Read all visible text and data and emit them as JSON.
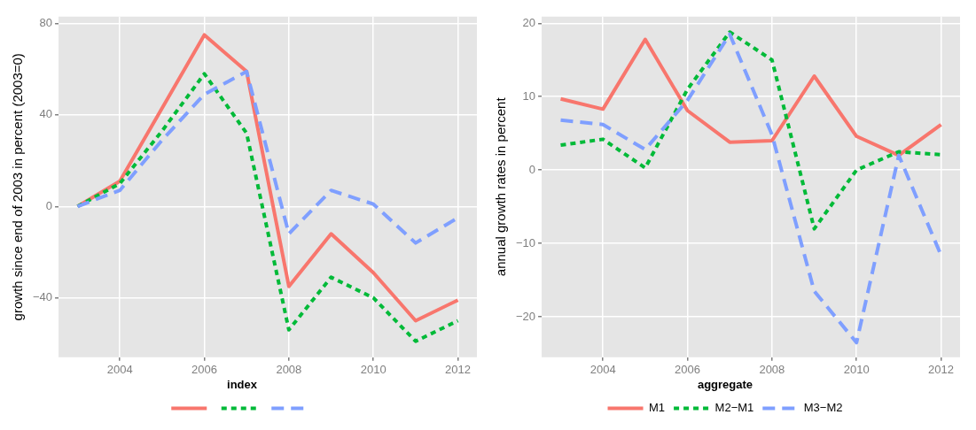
{
  "chart_data": [
    {
      "type": "line",
      "ylabel": "growth since end of 2003 in percent (2003=0)",
      "legend_title": "index",
      "legend": "bottom",
      "grid": true,
      "x": [
        2003,
        2004,
        2005,
        2006,
        2007,
        2008,
        2009,
        2010,
        2011,
        2012
      ],
      "xlim": [
        2002.55,
        2012.45
      ],
      "xticks": [
        2004,
        2006,
        2008,
        2010,
        2012
      ],
      "ylim": [
        -66,
        83
      ],
      "yticks": [
        -40,
        0,
        40,
        80
      ],
      "series": [
        {
          "color": "#f8766d",
          "line_style": "solid",
          "values": [
            0,
            11,
            43,
            75,
            59,
            -35,
            -12,
            -29,
            -50,
            -41
          ]
        },
        {
          "color": "#00ba38",
          "line_style": "dotted",
          "values": [
            0,
            10,
            33,
            58,
            32,
            -54,
            -31,
            -40,
            -59,
            -50
          ]
        },
        {
          "color": "#7f9fff",
          "line_style": "dashed",
          "values": [
            0,
            7,
            29,
            49,
            59,
            -12,
            7,
            1,
            -16,
            -5
          ]
        }
      ]
    },
    {
      "type": "line",
      "ylabel": "annual growth rates in percent",
      "legend_title": "aggregate",
      "legend": "bottom",
      "grid": true,
      "x": [
        2003,
        2004,
        2005,
        2006,
        2007,
        2008,
        2009,
        2010,
        2011,
        2012
      ],
      "xlim": [
        2002.55,
        2012.45
      ],
      "xticks": [
        2004,
        2006,
        2008,
        2010,
        2012
      ],
      "ylim": [
        -25.5,
        20.9
      ],
      "yticks": [
        {
          "value": -20,
          "label": "−20"
        },
        {
          "value": -10,
          "label": "−10"
        },
        0,
        10,
        20
      ],
      "series": [
        {
          "name": "M1",
          "color": "#f8766d",
          "line_style": "solid",
          "values": [
            9.7,
            8.3,
            17.8,
            8.1,
            3.8,
            4.0,
            12.8,
            4.6,
            2.0,
            6.2
          ]
        },
        {
          "name": "M2−M1",
          "color": "#00ba38",
          "line_style": "dotted",
          "values": [
            3.4,
            4.2,
            0.3,
            11,
            18.8,
            15,
            -8,
            0,
            2.5,
            2.1
          ]
        },
        {
          "name": "M3−M2",
          "color": "#7f9fff",
          "line_style": "dashed",
          "values": [
            6.8,
            6.2,
            2.8,
            9.5,
            18.5,
            4.8,
            -16.5,
            -23.5,
            2.0,
            -11.6
          ]
        }
      ]
    }
  ]
}
